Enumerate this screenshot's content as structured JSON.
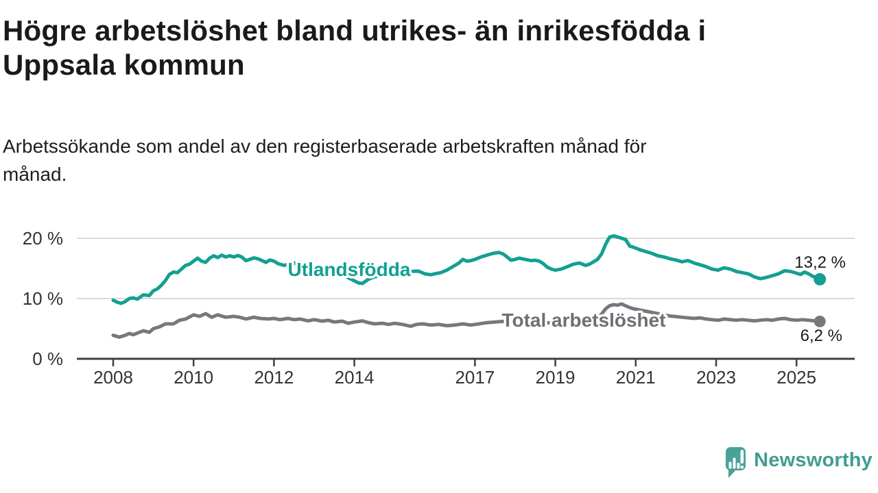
{
  "header": {
    "title": "Högre arbetslöshet bland utrikes- än inrikesfödda i Uppsala kommun",
    "title_lines": [
      "Högre arbetslöshet bland utrikes- än inrikesfödda i",
      "Uppsala kommun"
    ],
    "subtitle": "Arbetssökande som andel av den registerbaserade arbetskraften månad för månad.",
    "subtitle_lines": [
      "Arbetssökande som andel av den registerbaserade arbetskraften månad för",
      "månad."
    ]
  },
  "chart_data": {
    "type": "line",
    "unit": "%",
    "grid": "horizontal-only",
    "legend_position": "inline-on-lines",
    "x_range": [
      2008,
      2026.2
    ],
    "ylim": [
      0,
      22
    ],
    "x_ticks": [
      "2008",
      "2010",
      "2012",
      "2014",
      "2017",
      "2019",
      "2021",
      "2023",
      "2025"
    ],
    "x_tick_years": [
      2008,
      2010,
      2012,
      2014,
      2017,
      2019,
      2021,
      2023,
      2025
    ],
    "y_ticks": [
      {
        "value": 0,
        "label": "0 %"
      },
      {
        "value": 10,
        "label": "10 %"
      },
      {
        "value": 20,
        "label": "20 %"
      }
    ],
    "series": [
      {
        "name": "Utlandsfödda",
        "color": "#12a091",
        "label_color": "#12a091",
        "latest_value": 13.2,
        "end_label": "13,2 %",
        "points": [
          [
            2008.0,
            9.7
          ],
          [
            2008.1,
            9.4
          ],
          [
            2008.2,
            9.2
          ],
          [
            2008.3,
            9.5
          ],
          [
            2008.4,
            10.0
          ],
          [
            2008.5,
            10.1
          ],
          [
            2008.6,
            9.9
          ],
          [
            2008.75,
            10.6
          ],
          [
            2008.9,
            10.5
          ],
          [
            2009.0,
            11.3
          ],
          [
            2009.1,
            11.6
          ],
          [
            2009.2,
            12.2
          ],
          [
            2009.3,
            13.0
          ],
          [
            2009.4,
            14.0
          ],
          [
            2009.5,
            14.4
          ],
          [
            2009.6,
            14.3
          ],
          [
            2009.7,
            14.9
          ],
          [
            2009.8,
            15.5
          ],
          [
            2009.9,
            15.7
          ],
          [
            2010.0,
            16.2
          ],
          [
            2010.1,
            16.7
          ],
          [
            2010.2,
            16.2
          ],
          [
            2010.3,
            16.0
          ],
          [
            2010.4,
            16.7
          ],
          [
            2010.5,
            17.1
          ],
          [
            2010.6,
            16.8
          ],
          [
            2010.7,
            17.2
          ],
          [
            2010.8,
            16.9
          ],
          [
            2010.9,
            17.1
          ],
          [
            2011.0,
            16.9
          ],
          [
            2011.1,
            17.15
          ],
          [
            2011.2,
            16.9
          ],
          [
            2011.3,
            16.3
          ],
          [
            2011.4,
            16.5
          ],
          [
            2011.5,
            16.75
          ],
          [
            2011.6,
            16.6
          ],
          [
            2011.8,
            16.0
          ],
          [
            2011.9,
            16.4
          ],
          [
            2012.0,
            16.2
          ],
          [
            2012.1,
            15.8
          ],
          [
            2012.25,
            15.5
          ],
          [
            2012.4,
            15.8
          ],
          [
            2012.5,
            15.9
          ],
          [
            2012.6,
            15.6
          ],
          [
            2012.8,
            15.4
          ],
          [
            2013.0,
            15.1
          ],
          [
            2013.2,
            14.9
          ],
          [
            2013.4,
            14.5
          ],
          [
            2013.6,
            14.1
          ],
          [
            2013.8,
            13.6
          ],
          [
            2013.95,
            13.1
          ],
          [
            2014.1,
            12.6
          ],
          [
            2014.2,
            12.5
          ],
          [
            2014.35,
            13.2
          ],
          [
            2014.5,
            13.6
          ],
          [
            2014.75,
            13.9
          ],
          [
            2015.0,
            14.1
          ],
          [
            2015.2,
            14.3
          ],
          [
            2015.4,
            14.5
          ],
          [
            2015.6,
            14.55
          ],
          [
            2015.75,
            14.1
          ],
          [
            2015.9,
            13.95
          ],
          [
            2016.0,
            14.1
          ],
          [
            2016.15,
            14.3
          ],
          [
            2016.3,
            14.7
          ],
          [
            2016.45,
            15.3
          ],
          [
            2016.6,
            15.9
          ],
          [
            2016.7,
            16.5
          ],
          [
            2016.8,
            16.2
          ],
          [
            2016.9,
            16.3
          ],
          [
            2017.0,
            16.5
          ],
          [
            2017.15,
            16.9
          ],
          [
            2017.3,
            17.2
          ],
          [
            2017.45,
            17.5
          ],
          [
            2017.6,
            17.65
          ],
          [
            2017.7,
            17.4
          ],
          [
            2017.8,
            16.9
          ],
          [
            2017.9,
            16.35
          ],
          [
            2018.0,
            16.5
          ],
          [
            2018.1,
            16.7
          ],
          [
            2018.25,
            16.5
          ],
          [
            2018.4,
            16.3
          ],
          [
            2018.5,
            16.35
          ],
          [
            2018.6,
            16.2
          ],
          [
            2018.7,
            15.8
          ],
          [
            2018.8,
            15.2
          ],
          [
            2018.9,
            14.9
          ],
          [
            2019.0,
            14.7
          ],
          [
            2019.15,
            14.9
          ],
          [
            2019.3,
            15.3
          ],
          [
            2019.45,
            15.7
          ],
          [
            2019.6,
            15.9
          ],
          [
            2019.75,
            15.5
          ],
          [
            2019.85,
            15.7
          ],
          [
            2019.95,
            16.1
          ],
          [
            2020.05,
            16.5
          ],
          [
            2020.15,
            17.4
          ],
          [
            2020.25,
            19.0
          ],
          [
            2020.35,
            20.2
          ],
          [
            2020.45,
            20.4
          ],
          [
            2020.55,
            20.2
          ],
          [
            2020.65,
            20.0
          ],
          [
            2020.75,
            19.8
          ],
          [
            2020.85,
            18.7
          ],
          [
            2020.95,
            18.5
          ],
          [
            2021.1,
            18.1
          ],
          [
            2021.25,
            17.8
          ],
          [
            2021.4,
            17.5
          ],
          [
            2021.55,
            17.1
          ],
          [
            2021.7,
            16.9
          ],
          [
            2021.85,
            16.6
          ],
          [
            2022.0,
            16.4
          ],
          [
            2022.15,
            16.1
          ],
          [
            2022.3,
            16.3
          ],
          [
            2022.45,
            15.9
          ],
          [
            2022.6,
            15.6
          ],
          [
            2022.75,
            15.3
          ],
          [
            2022.9,
            14.9
          ],
          [
            2023.05,
            14.7
          ],
          [
            2023.2,
            15.1
          ],
          [
            2023.35,
            14.9
          ],
          [
            2023.5,
            14.5
          ],
          [
            2023.65,
            14.3
          ],
          [
            2023.8,
            14.1
          ],
          [
            2023.95,
            13.6
          ],
          [
            2024.1,
            13.3
          ],
          [
            2024.25,
            13.5
          ],
          [
            2024.4,
            13.8
          ],
          [
            2024.55,
            14.1
          ],
          [
            2024.7,
            14.6
          ],
          [
            2024.85,
            14.5
          ],
          [
            2025.0,
            14.2
          ],
          [
            2025.1,
            14.0
          ],
          [
            2025.2,
            14.4
          ],
          [
            2025.3,
            14.1
          ],
          [
            2025.4,
            13.7
          ],
          [
            2025.5,
            13.45
          ],
          [
            2025.58,
            13.2
          ]
        ]
      },
      {
        "name": "Total arbetslöshet",
        "color": "#77777d",
        "label_color": "#6e6e74",
        "latest_value": 6.2,
        "end_label": "6,2 %",
        "points": [
          [
            2008.0,
            3.9
          ],
          [
            2008.15,
            3.6
          ],
          [
            2008.3,
            3.9
          ],
          [
            2008.4,
            4.2
          ],
          [
            2008.5,
            4.0
          ],
          [
            2008.65,
            4.4
          ],
          [
            2008.75,
            4.65
          ],
          [
            2008.9,
            4.4
          ],
          [
            2009.0,
            5.0
          ],
          [
            2009.15,
            5.3
          ],
          [
            2009.3,
            5.8
          ],
          [
            2009.5,
            5.8
          ],
          [
            2009.65,
            6.4
          ],
          [
            2009.8,
            6.6
          ],
          [
            2010.0,
            7.3
          ],
          [
            2010.15,
            7.05
          ],
          [
            2010.3,
            7.5
          ],
          [
            2010.45,
            6.9
          ],
          [
            2010.6,
            7.3
          ],
          [
            2010.8,
            6.9
          ],
          [
            2011.0,
            7.05
          ],
          [
            2011.15,
            6.9
          ],
          [
            2011.3,
            6.6
          ],
          [
            2011.5,
            6.9
          ],
          [
            2011.65,
            6.7
          ],
          [
            2011.85,
            6.6
          ],
          [
            2012.0,
            6.7
          ],
          [
            2012.15,
            6.5
          ],
          [
            2012.35,
            6.7
          ],
          [
            2012.5,
            6.5
          ],
          [
            2012.65,
            6.6
          ],
          [
            2012.85,
            6.3
          ],
          [
            2013.0,
            6.5
          ],
          [
            2013.2,
            6.25
          ],
          [
            2013.35,
            6.4
          ],
          [
            2013.5,
            6.1
          ],
          [
            2013.7,
            6.25
          ],
          [
            2013.85,
            5.9
          ],
          [
            2014.0,
            6.1
          ],
          [
            2014.2,
            6.3
          ],
          [
            2014.35,
            6.0
          ],
          [
            2014.5,
            5.8
          ],
          [
            2014.7,
            5.9
          ],
          [
            2014.85,
            5.7
          ],
          [
            2015.0,
            5.9
          ],
          [
            2015.2,
            5.7
          ],
          [
            2015.4,
            5.4
          ],
          [
            2015.55,
            5.7
          ],
          [
            2015.7,
            5.8
          ],
          [
            2015.9,
            5.6
          ],
          [
            2016.1,
            5.7
          ],
          [
            2016.3,
            5.5
          ],
          [
            2016.5,
            5.6
          ],
          [
            2016.7,
            5.8
          ],
          [
            2016.9,
            5.6
          ],
          [
            2017.1,
            5.8
          ],
          [
            2017.3,
            6.0
          ],
          [
            2017.5,
            6.1
          ],
          [
            2017.7,
            6.2
          ],
          [
            2017.9,
            6.0
          ],
          [
            2018.1,
            6.2
          ],
          [
            2018.3,
            6.3
          ],
          [
            2018.5,
            6.2
          ],
          [
            2018.7,
            6.1
          ],
          [
            2018.9,
            5.9
          ],
          [
            2019.1,
            6.0
          ],
          [
            2019.3,
            6.1
          ],
          [
            2019.5,
            6.2
          ],
          [
            2019.7,
            6.1
          ],
          [
            2019.9,
            6.3
          ],
          [
            2020.05,
            6.8
          ],
          [
            2020.15,
            7.4
          ],
          [
            2020.25,
            8.3
          ],
          [
            2020.35,
            8.8
          ],
          [
            2020.45,
            9.0
          ],
          [
            2020.55,
            8.9
          ],
          [
            2020.65,
            9.1
          ],
          [
            2020.75,
            8.8
          ],
          [
            2020.85,
            8.5
          ],
          [
            2020.95,
            8.3
          ],
          [
            2021.1,
            8.1
          ],
          [
            2021.25,
            7.9
          ],
          [
            2021.4,
            7.7
          ],
          [
            2021.55,
            7.5
          ],
          [
            2021.7,
            7.3
          ],
          [
            2021.85,
            7.1
          ],
          [
            2022.0,
            7.0
          ],
          [
            2022.15,
            6.9
          ],
          [
            2022.3,
            6.8
          ],
          [
            2022.45,
            6.7
          ],
          [
            2022.6,
            6.8
          ],
          [
            2022.75,
            6.6
          ],
          [
            2022.9,
            6.5
          ],
          [
            2023.05,
            6.4
          ],
          [
            2023.2,
            6.6
          ],
          [
            2023.35,
            6.5
          ],
          [
            2023.5,
            6.4
          ],
          [
            2023.65,
            6.5
          ],
          [
            2023.8,
            6.4
          ],
          [
            2023.95,
            6.3
          ],
          [
            2024.1,
            6.4
          ],
          [
            2024.25,
            6.5
          ],
          [
            2024.4,
            6.4
          ],
          [
            2024.55,
            6.6
          ],
          [
            2024.7,
            6.7
          ],
          [
            2024.85,
            6.5
          ],
          [
            2025.0,
            6.4
          ],
          [
            2025.15,
            6.5
          ],
          [
            2025.3,
            6.4
          ],
          [
            2025.45,
            6.3
          ],
          [
            2025.58,
            6.2
          ]
        ]
      }
    ]
  },
  "footer": {
    "brand": "Newsworthy",
    "logo_icon": "speech-bubble-bar-chart-icon",
    "brand_color": "#3f9d92",
    "icon_color": "#4aa197"
  },
  "colors": {
    "background": "#ffffff",
    "title_text": "#1a1a1a",
    "axis_text": "#333333",
    "axis_line": "#3f3f3f",
    "gridline": "#d9d9d9",
    "end_label_text": "#1a1a1a",
    "series_teal": "#12a091",
    "series_gray": "#77777d"
  }
}
